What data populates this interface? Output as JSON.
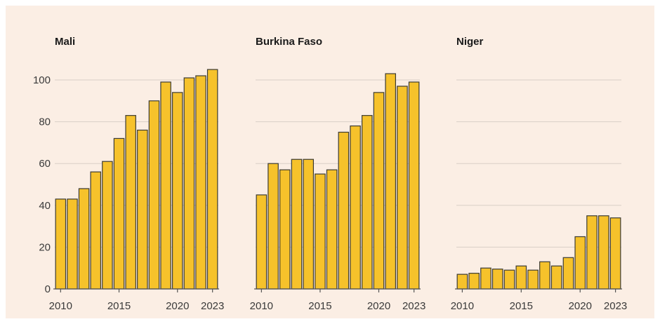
{
  "colors": {
    "bar": "#f6c22b",
    "background": "#fbeee4"
  },
  "chart_data": [
    {
      "type": "bar",
      "title": "Mali",
      "years": [
        2010,
        2011,
        2012,
        2013,
        2014,
        2015,
        2016,
        2017,
        2018,
        2019,
        2020,
        2021,
        2022,
        2023
      ],
      "values": [
        43,
        43,
        48,
        56,
        61,
        72,
        83,
        76,
        90,
        99,
        94,
        101,
        102,
        105
      ],
      "x_ticks": [
        "2010",
        "2015",
        "2020",
        "2023"
      ],
      "y_ticks": [
        "0",
        "20",
        "40",
        "60",
        "80",
        "100"
      ],
      "ylim": [
        0,
        105
      ],
      "grid": true
    },
    {
      "type": "bar",
      "title": "Burkina Faso",
      "years": [
        2010,
        2011,
        2012,
        2013,
        2014,
        2015,
        2016,
        2017,
        2018,
        2019,
        2020,
        2021,
        2022,
        2023
      ],
      "values": [
        45,
        60,
        57,
        62,
        62,
        55,
        57,
        75,
        78,
        83,
        94,
        103,
        97,
        99
      ],
      "x_ticks": [
        "2010",
        "2015",
        "2020",
        "2023"
      ],
      "ylim": [
        0,
        105
      ],
      "grid": true
    },
    {
      "type": "bar",
      "title": "Niger",
      "years": [
        2010,
        2011,
        2012,
        2013,
        2014,
        2015,
        2016,
        2017,
        2018,
        2019,
        2020,
        2021,
        2022,
        2023
      ],
      "values": [
        7,
        7.5,
        10,
        9.5,
        9,
        11,
        9,
        13,
        11,
        15,
        25,
        35,
        35,
        34
      ],
      "x_ticks": [
        "2010",
        "2015",
        "2020",
        "2023"
      ],
      "ylim": [
        0,
        105
      ],
      "grid": true
    }
  ]
}
